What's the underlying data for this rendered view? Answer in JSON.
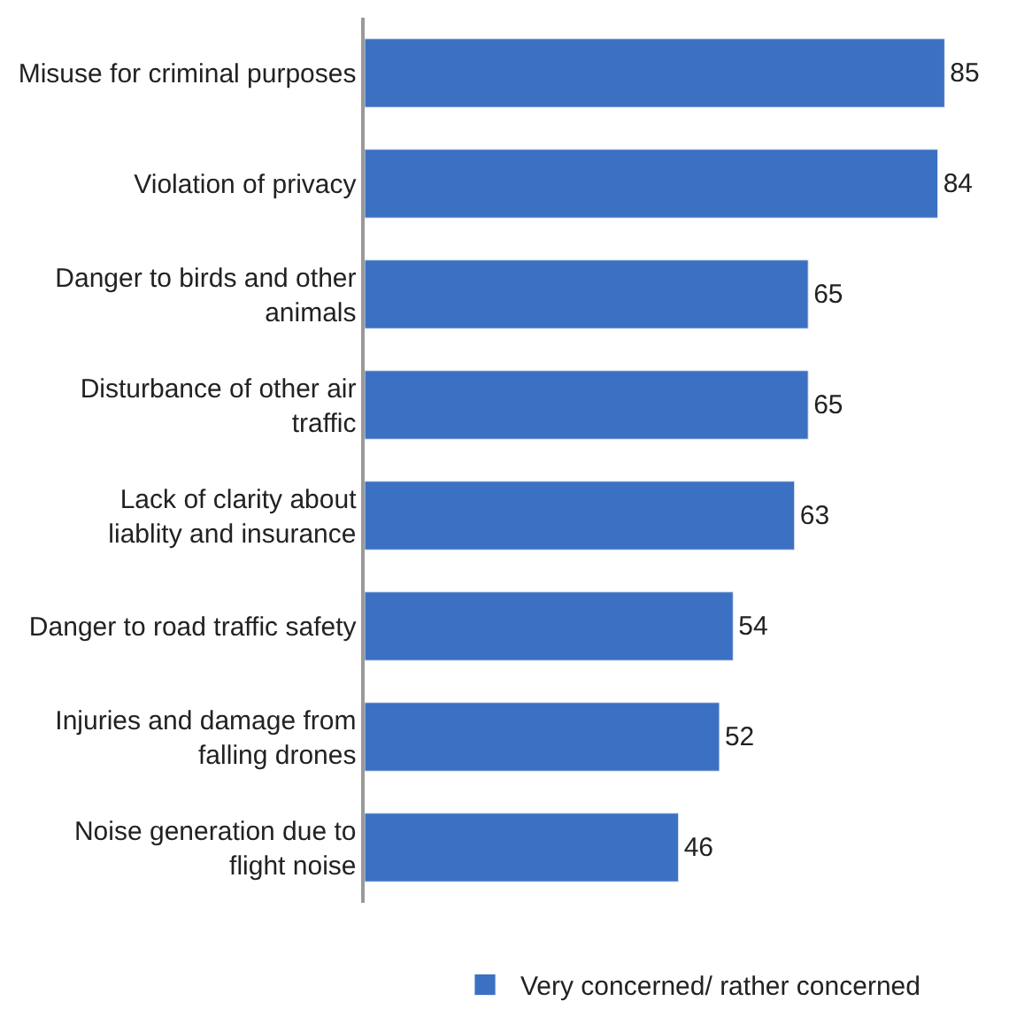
{
  "chart_data": {
    "type": "bar",
    "orientation": "horizontal",
    "categories": [
      "Misuse for criminal purposes",
      "Violation of privacy",
      "Danger to birds and other animals",
      "Disturbance of other air traffic",
      "Lack of clarity about liablity and insurance",
      "Danger to road traffic safety",
      "Injuries and damage from falling drones",
      "Noise generation due to flight noise"
    ],
    "series": [
      {
        "name": "Very concerned/ rather concerned",
        "color": "#3b70c2",
        "values": [
          85,
          84,
          65,
          65,
          63,
          54,
          52,
          46
        ]
      }
    ],
    "data_labels": true,
    "legend": "bottom"
  }
}
